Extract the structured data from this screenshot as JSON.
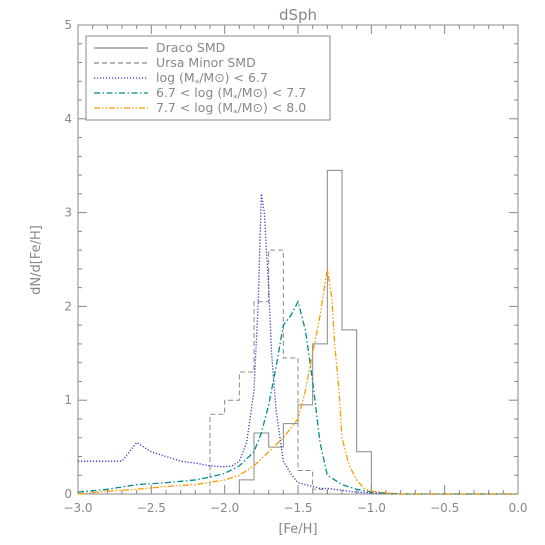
{
  "chart_data": {
    "type": "line",
    "title": "dSph",
    "xlabel": "[Fe/H]",
    "ylabel": "dN/d[Fe/H]",
    "xlim": [
      -3.0,
      0.0
    ],
    "ylim": [
      0,
      5
    ],
    "xticks": [
      -3.0,
      -2.5,
      -2.0,
      -1.5,
      -1.0,
      -0.5,
      0.0
    ],
    "xtick_labels": [
      "−3.0",
      "−2.5",
      "−2.0",
      "−1.5",
      "−1.0",
      "−0.5",
      "0.0"
    ],
    "yticks": [
      0,
      1,
      2,
      3,
      4,
      5
    ],
    "ytick_labels": [
      "0",
      "1",
      "2",
      "3",
      "4",
      "5"
    ],
    "grid": false,
    "legend_position": "top-left",
    "histograms": [
      {
        "name": "Draco SMD",
        "style": "solid-step",
        "color": "#888888",
        "bin_edges": [
          -1.9,
          -1.8,
          -1.7,
          -1.6,
          -1.5,
          -1.4,
          -1.3,
          -1.2,
          -1.1,
          -1.0
        ],
        "values": [
          0.15,
          0.65,
          0.5,
          0.75,
          0.95,
          1.6,
          3.45,
          1.75,
          0.45
        ]
      },
      {
        "name": "Ursa Minor SMD",
        "style": "dashed-step",
        "color": "#888888",
        "bin_edges": [
          -2.1,
          -2.0,
          -1.9,
          -1.8,
          -1.7,
          -1.6,
          -1.5,
          -1.4,
          -1.3,
          -1.2
        ],
        "values": [
          0.85,
          1.0,
          1.3,
          2.05,
          2.6,
          1.45,
          0.25,
          0.05,
          0.0
        ]
      }
    ],
    "series": [
      {
        "name": "log (M*/M⊙) < 6.7",
        "color": "#3333cc",
        "style": "dotted",
        "x": [
          -3.0,
          -2.7,
          -2.6,
          -2.5,
          -2.4,
          -2.3,
          -2.2,
          -2.1,
          -2.0,
          -1.95,
          -1.9,
          -1.85,
          -1.8,
          -1.77,
          -1.75,
          -1.73,
          -1.7,
          -1.68,
          -1.65,
          -1.6,
          -1.55,
          -1.5,
          -1.45,
          -1.4,
          -1.35,
          -1.3,
          -1.2,
          -1.1,
          -1.0,
          -0.8,
          -0.6,
          0.0
        ],
        "y": [
          0.35,
          0.35,
          0.55,
          0.45,
          0.4,
          0.35,
          0.33,
          0.3,
          0.29,
          0.3,
          0.35,
          0.55,
          1.1,
          2.1,
          3.2,
          3.0,
          2.2,
          1.5,
          0.9,
          0.35,
          0.22,
          0.12,
          0.1,
          0.08,
          0.06,
          0.06,
          0.04,
          0.02,
          0.01,
          0.0,
          0.0,
          0.0
        ]
      },
      {
        "name": "6.7 < log (M*/M⊙) < 7.7",
        "color": "#008b8b",
        "style": "dash-dot",
        "x": [
          -3.0,
          -2.8,
          -2.6,
          -2.4,
          -2.2,
          -2.1,
          -2.0,
          -1.9,
          -1.8,
          -1.75,
          -1.7,
          -1.65,
          -1.6,
          -1.55,
          -1.5,
          -1.45,
          -1.4,
          -1.35,
          -1.3,
          -1.2,
          -1.1,
          -1.0,
          -0.8,
          -0.6,
          0.0
        ],
        "y": [
          0.02,
          0.05,
          0.1,
          0.12,
          0.15,
          0.18,
          0.22,
          0.3,
          0.45,
          0.65,
          0.95,
          1.35,
          1.8,
          1.9,
          2.05,
          1.75,
          1.2,
          0.55,
          0.2,
          0.1,
          0.05,
          0.02,
          0.0,
          0.0,
          0.0
        ]
      },
      {
        "name": "7.7 < log (M*/M⊙) < 8.0",
        "color": "#ff9900",
        "style": "dash-dot-dot",
        "x": [
          -3.0,
          -2.8,
          -2.6,
          -2.4,
          -2.2,
          -2.0,
          -1.9,
          -1.8,
          -1.7,
          -1.6,
          -1.5,
          -1.45,
          -1.4,
          -1.35,
          -1.3,
          -1.27,
          -1.25,
          -1.22,
          -1.2,
          -1.15,
          -1.1,
          -1.05,
          -1.0,
          -0.9,
          -0.8,
          -0.6,
          0.0
        ],
        "y": [
          0.0,
          0.03,
          0.05,
          0.08,
          0.1,
          0.15,
          0.2,
          0.3,
          0.45,
          0.6,
          0.8,
          1.1,
          1.5,
          1.9,
          2.4,
          2.1,
          1.6,
          1.1,
          0.6,
          0.3,
          0.15,
          0.06,
          0.03,
          0.01,
          0.0,
          0.0,
          0.0
        ]
      }
    ]
  },
  "legend": {
    "items": [
      {
        "prefix": "Draco SMD",
        "sub": "",
        "suffix": ""
      },
      {
        "prefix": "Ursa Minor SMD",
        "sub": "",
        "suffix": ""
      },
      {
        "prefix": "log (M",
        "sub": "*",
        "suffix": "/M⊙) < 6.7"
      },
      {
        "prefix": "6.7 < log (M",
        "sub": "*",
        "suffix": "/M⊙) < 7.7"
      },
      {
        "prefix": "7.7 < log (M",
        "sub": "*",
        "suffix": "/M⊙) < 8.0"
      }
    ]
  }
}
